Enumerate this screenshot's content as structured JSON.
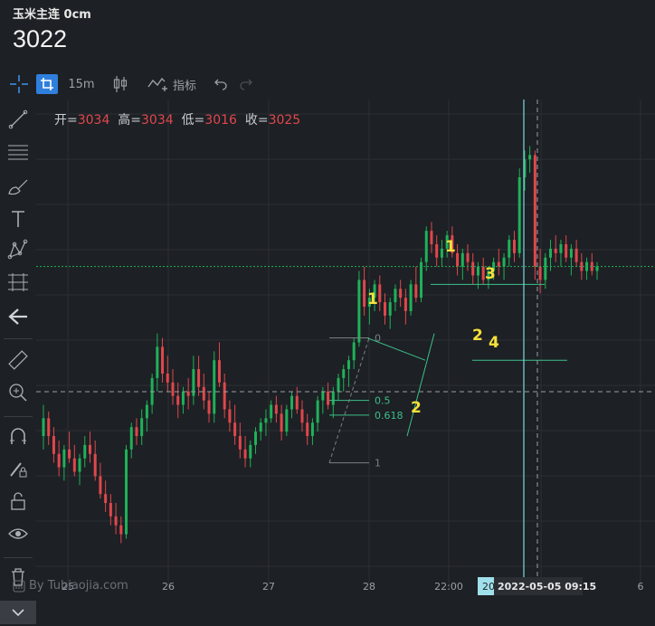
{
  "header": {
    "symbol": "玉米主连 0cm",
    "price": "3022"
  },
  "toolbar": {
    "interval": "15m",
    "indicator": "指标"
  },
  "ohlc": {
    "open_label": "开=",
    "open": "3034",
    "high_label": "高=",
    "high": "3034",
    "low_label": "低=",
    "low": "3016",
    "close_label": "收=",
    "close": "3025"
  },
  "watermark": "By Tubiaojia.com",
  "colors": {
    "up": "#1fb15a",
    "down": "#e0474c",
    "background": "#1d2024",
    "grid": "#2b2f34",
    "annotation": "#f5e13a",
    "crosshair": "#7fd8e6",
    "fib": "#3cbf8a"
  },
  "chart_data": {
    "type": "candlestick",
    "x_tick_labels": [
      "25",
      "26",
      "27",
      "28",
      "22:00",
      "6"
    ],
    "crosshair_x_label": "2022-05-05   09:15",
    "crosshair_x_label_partial": "20",
    "fib_levels": [
      {
        "label": "0",
        "ratio": 0
      },
      {
        "label": "0.5",
        "ratio": 0.5
      },
      {
        "label": "0.618",
        "ratio": 0.618
      },
      {
        "label": "1",
        "ratio": 1
      }
    ],
    "annotations": [
      "1",
      "2",
      "1",
      "2",
      "3",
      "4"
    ],
    "ohlc": [
      [
        2990,
        3004,
        2984,
        2998
      ],
      [
        2998,
        3001,
        2986,
        2990
      ],
      [
        2990,
        2994,
        2978,
        2982
      ],
      [
        2982,
        2988,
        2972,
        2976
      ],
      [
        2976,
        2986,
        2970,
        2984
      ],
      [
        2984,
        2992,
        2978,
        2980
      ],
      [
        2980,
        2986,
        2972,
        2974
      ],
      [
        2974,
        2982,
        2968,
        2980
      ],
      [
        2980,
        2990,
        2976,
        2986
      ],
      [
        2986,
        2992,
        2978,
        2982
      ],
      [
        2982,
        2988,
        2970,
        2972
      ],
      [
        2972,
        2978,
        2962,
        2964
      ],
      [
        2964,
        2970,
        2956,
        2960
      ],
      [
        2960,
        2964,
        2950,
        2954
      ],
      [
        2954,
        2960,
        2946,
        2950
      ],
      [
        2950,
        2954,
        2942,
        2946
      ],
      [
        2946,
        2986,
        2944,
        2984
      ],
      [
        2984,
        2996,
        2980,
        2994
      ],
      [
        2994,
        2998,
        2986,
        2990
      ],
      [
        2990,
        3002,
        2986,
        2998
      ],
      [
        2998,
        3006,
        2992,
        3004
      ],
      [
        3004,
        3018,
        3000,
        3016
      ],
      [
        3016,
        3036,
        3010,
        3030
      ],
      [
        3030,
        3034,
        3014,
        3018
      ],
      [
        3018,
        3026,
        3010,
        3014
      ],
      [
        3014,
        3020,
        3004,
        3008
      ],
      [
        3008,
        3014,
        2998,
        3004
      ],
      [
        3004,
        3012,
        3000,
        3010
      ],
      [
        3010,
        3016,
        3002,
        3008
      ],
      [
        3008,
        3026,
        3004,
        3020
      ],
      [
        3020,
        3026,
        3008,
        3012
      ],
      [
        3012,
        3018,
        3002,
        3006
      ],
      [
        3006,
        3010,
        2996,
        3000
      ],
      [
        3000,
        3028,
        2996,
        3024
      ],
      [
        3024,
        3032,
        3012,
        3014
      ],
      [
        3014,
        3018,
        2998,
        3002
      ],
      [
        3002,
        3006,
        2992,
        2996
      ],
      [
        2996,
        3004,
        2986,
        2990
      ],
      [
        2990,
        2996,
        2980,
        2984
      ],
      [
        2984,
        2990,
        2976,
        2980
      ],
      [
        2980,
        2988,
        2976,
        2986
      ],
      [
        2986,
        2994,
        2982,
        2992
      ],
      [
        2992,
        2998,
        2988,
        2996
      ],
      [
        2996,
        3002,
        2990,
        2998
      ],
      [
        2998,
        3006,
        2996,
        3004
      ],
      [
        3004,
        3008,
        2996,
        3000
      ],
      [
        3000,
        3004,
        2988,
        2992
      ],
      [
        2992,
        3004,
        2990,
        3002
      ],
      [
        3002,
        3010,
        2998,
        3008
      ],
      [
        3008,
        3012,
        3000,
        3002
      ],
      [
        3002,
        3006,
        2992,
        2996
      ],
      [
        2996,
        3000,
        2986,
        2990
      ],
      [
        2990,
        2998,
        2986,
        2996
      ],
      [
        2996,
        3008,
        2992,
        3006
      ],
      [
        3006,
        3012,
        3000,
        3010
      ],
      [
        3010,
        3014,
        3002,
        3004
      ],
      [
        3004,
        3012,
        2998,
        3010
      ],
      [
        3010,
        3018,
        3006,
        3016
      ],
      [
        3016,
        3022,
        3010,
        3020
      ],
      [
        3020,
        3026,
        3012,
        3024
      ],
      [
        3024,
        3034,
        3020,
        3032
      ],
      [
        3032,
        3064,
        3030,
        3060
      ],
      [
        3060,
        3066,
        3044,
        3048
      ],
      [
        3048,
        3056,
        3040,
        3052
      ],
      [
        3052,
        3060,
        3046,
        3058
      ],
      [
        3058,
        3062,
        3046,
        3050
      ],
      [
        3050,
        3054,
        3040,
        3044
      ],
      [
        3044,
        3052,
        3038,
        3050
      ],
      [
        3050,
        3058,
        3046,
        3056
      ],
      [
        3056,
        3060,
        3048,
        3052
      ],
      [
        3052,
        3056,
        3040,
        3046
      ],
      [
        3046,
        3060,
        3044,
        3058
      ],
      [
        3058,
        3066,
        3050,
        3052
      ],
      [
        3052,
        3070,
        3050,
        3068
      ],
      [
        3068,
        3084,
        3064,
        3082
      ],
      [
        3082,
        3086,
        3072,
        3076
      ],
      [
        3076,
        3080,
        3066,
        3070
      ],
      [
        3070,
        3078,
        3066,
        3074
      ],
      [
        3074,
        3082,
        3070,
        3080
      ],
      [
        3080,
        3084,
        3070,
        3072
      ],
      [
        3072,
        3076,
        3062,
        3066
      ],
      [
        3066,
        3074,
        3060,
        3072
      ],
      [
        3072,
        3076,
        3064,
        3068
      ],
      [
        3068,
        3072,
        3058,
        3062
      ],
      [
        3062,
        3068,
        3056,
        3066
      ],
      [
        3066,
        3070,
        3058,
        3060
      ],
      [
        3060,
        3066,
        3056,
        3064
      ],
      [
        3064,
        3070,
        3060,
        3068
      ],
      [
        3068,
        3074,
        3062,
        3066
      ],
      [
        3066,
        3072,
        3060,
        3070
      ],
      [
        3070,
        3080,
        3066,
        3078
      ],
      [
        3078,
        3082,
        3068,
        3072
      ],
      [
        3072,
        3110,
        3070,
        3106
      ],
      [
        3106,
        3118,
        3100,
        3114
      ],
      [
        3114,
        3120,
        3108,
        3116
      ],
      [
        3116,
        3118,
        3060,
        3066
      ],
      [
        3066,
        3074,
        3054,
        3060
      ],
      [
        3060,
        3072,
        3056,
        3070
      ],
      [
        3070,
        3078,
        3064,
        3074
      ],
      [
        3074,
        3080,
        3068,
        3072
      ],
      [
        3072,
        3078,
        3066,
        3076
      ],
      [
        3076,
        3080,
        3068,
        3070
      ],
      [
        3070,
        3076,
        3062,
        3074
      ],
      [
        3074,
        3078,
        3066,
        3068
      ],
      [
        3068,
        3072,
        3060,
        3064
      ],
      [
        3064,
        3070,
        3060,
        3068
      ],
      [
        3068,
        3072,
        3062,
        3064
      ],
      [
        3064,
        3068,
        3060,
        3066
      ]
    ]
  }
}
